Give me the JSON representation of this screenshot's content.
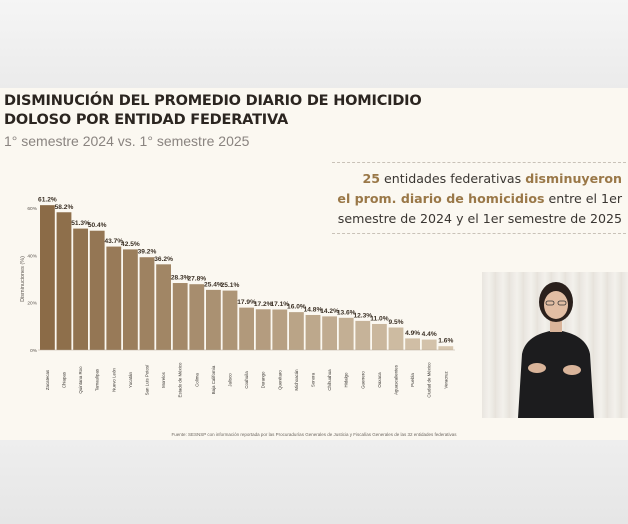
{
  "slide": {
    "title_line1": "DISMINUCIÓN DEL PROMEDIO DIARIO DE HOMICIDIO",
    "title_line2": "DOLOSO POR ENTIDAD FEDERATIVA",
    "subtitle": "1° semestre 2024 vs. 1° semestre 2025",
    "callout": {
      "number": "25",
      "part1": " entidades federativas ",
      "highlight1": "disminuyeron",
      "highlight2": "el prom. diario de homicidios",
      "part2": " entre el 1er",
      "line3": "semestre de 2024 y el 1er semestre de 2025"
    },
    "source": "Fuente: SESNSP con información reportada por las Procuradurías Generales de Justicia y Fiscalías Generales de las 32 entidades federativas"
  },
  "colors": {
    "bar_dark": "#8b6b47",
    "bar_light": "#d6c6ae",
    "text_dark": "#2b2520",
    "accent": "#9a7848",
    "background": "#fbf8f1"
  },
  "chart_data": {
    "type": "bar",
    "ylabel": "Disminuciones (%)",
    "ylim": [
      0,
      60
    ],
    "yticks": [
      "0%",
      "20%",
      "40%",
      "60%"
    ],
    "categories": [
      "Zacatecas",
      "Chiapas",
      "Quintana Roo",
      "Tamaulipas",
      "Nuevo León",
      "Yucatán",
      "San Luis Potosí",
      "Morelos",
      "Estado de México",
      "Colima",
      "Baja California",
      "Jalisco",
      "Coahuila",
      "Durango",
      "Querétaro",
      "Michoacán",
      "Sonora",
      "Chihuahua",
      "Hidalgo",
      "Guerrero",
      "Oaxaca",
      "Aguascalientes",
      "Puebla",
      "Ciudad de México",
      "Veracruz"
    ],
    "values": [
      61.2,
      58.2,
      51.3,
      50.4,
      43.7,
      42.5,
      39.2,
      36.2,
      28.3,
      27.8,
      25.4,
      25.1,
      17.9,
      17.2,
      17.1,
      16.0,
      14.8,
      14.2,
      13.6,
      12.3,
      11.0,
      9.5,
      4.9,
      4.4,
      1.6
    ],
    "labels": [
      "61.2%",
      "58.2%",
      "51.3%",
      "50.4%",
      "43.7%",
      "42.5%",
      "39.2%",
      "36.2%",
      "28.3%",
      "27.8%",
      "25.4%",
      "25.1%",
      "17.9%",
      "17.2%",
      "17.1%",
      "16.0%",
      "14.8%",
      "14.2%",
      "13.6%",
      "12.3%",
      "11.0%",
      "9.5%",
      "4.9%",
      "4.4%",
      "1.6%"
    ],
    "grid": false
  }
}
